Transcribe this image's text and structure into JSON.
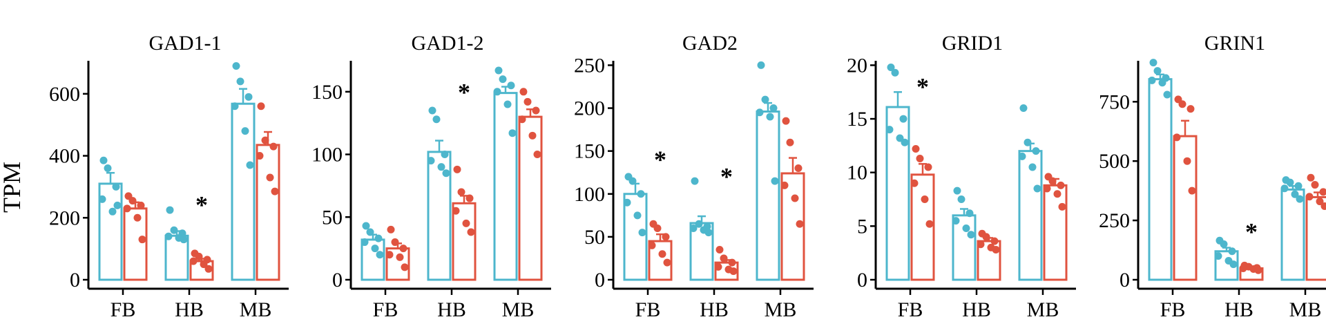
{
  "colors": {
    "control": "#4DB6CC",
    "treatment": "#E0533F",
    "axis": "#000000"
  },
  "y_axis_label": "TPM",
  "chart_data": [
    {
      "type": "bar",
      "title": "GAD1-1",
      "categories": [
        "FB",
        "HB",
        "MB"
      ],
      "ylim": [
        0,
        720
      ],
      "yticks": [
        0,
        200,
        400,
        600
      ],
      "series": [
        {
          "values": [
            310,
            142,
            568
          ],
          "errors": [
            35,
            15,
            48
          ],
          "points": [
            [
              385,
              360,
              300,
              260,
              220,
              240
            ],
            [
              225,
              160,
              150,
              140,
              135,
              130
            ],
            [
              690,
              640,
              590,
              560,
              480,
              370
            ]
          ]
        },
        {
          "values": [
            230,
            60,
            435
          ],
          "errors": [
            20,
            8,
            42
          ],
          "points": [
            [
              270,
              255,
              240,
              230,
              200,
              130
            ],
            [
              85,
              75,
              65,
              60,
              50,
              35
            ],
            [
              560,
              450,
              430,
              400,
              330,
              285
            ]
          ]
        }
      ],
      "annotations": [
        {
          "category": "HB",
          "text": "*",
          "y": 255
        }
      ]
    },
    {
      "type": "bar",
      "title": "GAD1-2",
      "categories": [
        "FB",
        "HB",
        "MB"
      ],
      "ylim": [
        0,
        178
      ],
      "yticks": [
        0,
        50,
        100,
        150
      ],
      "series": [
        {
          "values": [
            32,
            102,
            149
          ],
          "errors": [
            4,
            9,
            5
          ],
          "points": [
            [
              43,
              38,
              33,
              30,
              25,
              20
            ],
            [
              135,
              128,
              100,
              95,
              90,
              85
            ],
            [
              167,
              160,
              155,
              150,
              140,
              117
            ]
          ]
        },
        {
          "values": [
            25,
            61,
            130
          ],
          "errors": [
            4,
            6,
            6
          ],
          "points": [
            [
              40,
              30,
              25,
              20,
              18,
              10
            ],
            [
              88,
              70,
              65,
              55,
              45,
              38
            ],
            [
              150,
              142,
              135,
              128,
              115,
              100
            ]
          ]
        }
      ],
      "annotations": [
        {
          "category": "HB",
          "text": "*",
          "y": 153
        }
      ]
    },
    {
      "type": "bar",
      "title": "GAD2",
      "categories": [
        "FB",
        "HB",
        "MB"
      ],
      "ylim": [
        0,
        260
      ],
      "yticks": [
        0,
        50,
        100,
        150,
        200,
        250
      ],
      "series": [
        {
          "values": [
            100,
            66,
            196
          ],
          "errors": [
            12,
            8,
            10
          ],
          "points": [
            [
              120,
              115,
              100,
              90,
              75,
              55
            ],
            [
              115,
              65,
              62,
              60,
              58,
              55
            ],
            [
              250,
              210,
              200,
              195,
              190,
              115
            ]
          ]
        },
        {
          "values": [
            45,
            20,
            124
          ],
          "errors": [
            8,
            3,
            18
          ],
          "points": [
            [
              65,
              60,
              50,
              40,
              30,
              20
            ],
            [
              35,
              25,
              20,
              15,
              12,
              10
            ],
            [
              185,
              160,
              130,
              110,
              95,
              65
            ]
          ]
        }
      ],
      "annotations": [
        {
          "category": "FB",
          "text": "*",
          "y": 145
        },
        {
          "category": "HB",
          "text": "*",
          "y": 125
        }
      ]
    },
    {
      "type": "bar",
      "title": "GRID1",
      "categories": [
        "FB",
        "HB",
        "MB"
      ],
      "ylim": [
        0,
        20.8
      ],
      "yticks": [
        0,
        5,
        10,
        15,
        20
      ],
      "series": [
        {
          "values": [
            16.1,
            6.0,
            12.0
          ],
          "errors": [
            1.4,
            0.6,
            0.7
          ],
          "points": [
            [
              19.8,
              19.3,
              15.0,
              14.0,
              13.2,
              12.8
            ],
            [
              8.3,
              7.5,
              6.2,
              5.5,
              4.8,
              4.2
            ],
            [
              16.0,
              12.8,
              12.0,
              11.5,
              10.5,
              8.5
            ]
          ]
        },
        {
          "values": [
            9.8,
            3.6,
            8.8
          ],
          "errors": [
            1.0,
            0.3,
            0.6
          ],
          "points": [
            [
              12.2,
              11.3,
              10.5,
              9.0,
              7.5,
              5.2
            ],
            [
              4.3,
              4.0,
              3.6,
              3.3,
              3.0,
              2.8
            ],
            [
              9.6,
              9.2,
              8.8,
              8.5,
              8.0,
              6.8
            ]
          ]
        }
      ],
      "annotations": [
        {
          "category": "FB",
          "text": "*",
          "y": 18.4
        }
      ]
    },
    {
      "type": "bar",
      "title": "GRIN1",
      "categories": [
        "FB",
        "HB",
        "MB"
      ],
      "ylim": [
        0,
        940
      ],
      "yticks": [
        0,
        250,
        500,
        750
      ],
      "series": [
        {
          "values": [
            845,
            120,
            380
          ],
          "errors": [
            20,
            15,
            15
          ],
          "points": [
            [
              915,
              880,
              850,
              840,
              830,
              780
            ],
            [
              165,
              150,
              120,
              100,
              80,
              65
            ],
            [
              420,
              410,
              395,
              385,
              360,
              340
            ]
          ]
        },
        {
          "values": [
            605,
            48,
            348
          ],
          "errors": [
            65,
            5,
            20
          ],
          "points": [
            [
              760,
              740,
              720,
              600,
              500,
              375
            ],
            [
              60,
              55,
              50,
              48,
              45,
              40
            ],
            [
              430,
              400,
              370,
              350,
              330,
              310
            ]
          ]
        }
      ],
      "annotations": [
        {
          "category": "HB",
          "text": "*",
          "y": 220
        }
      ]
    }
  ]
}
